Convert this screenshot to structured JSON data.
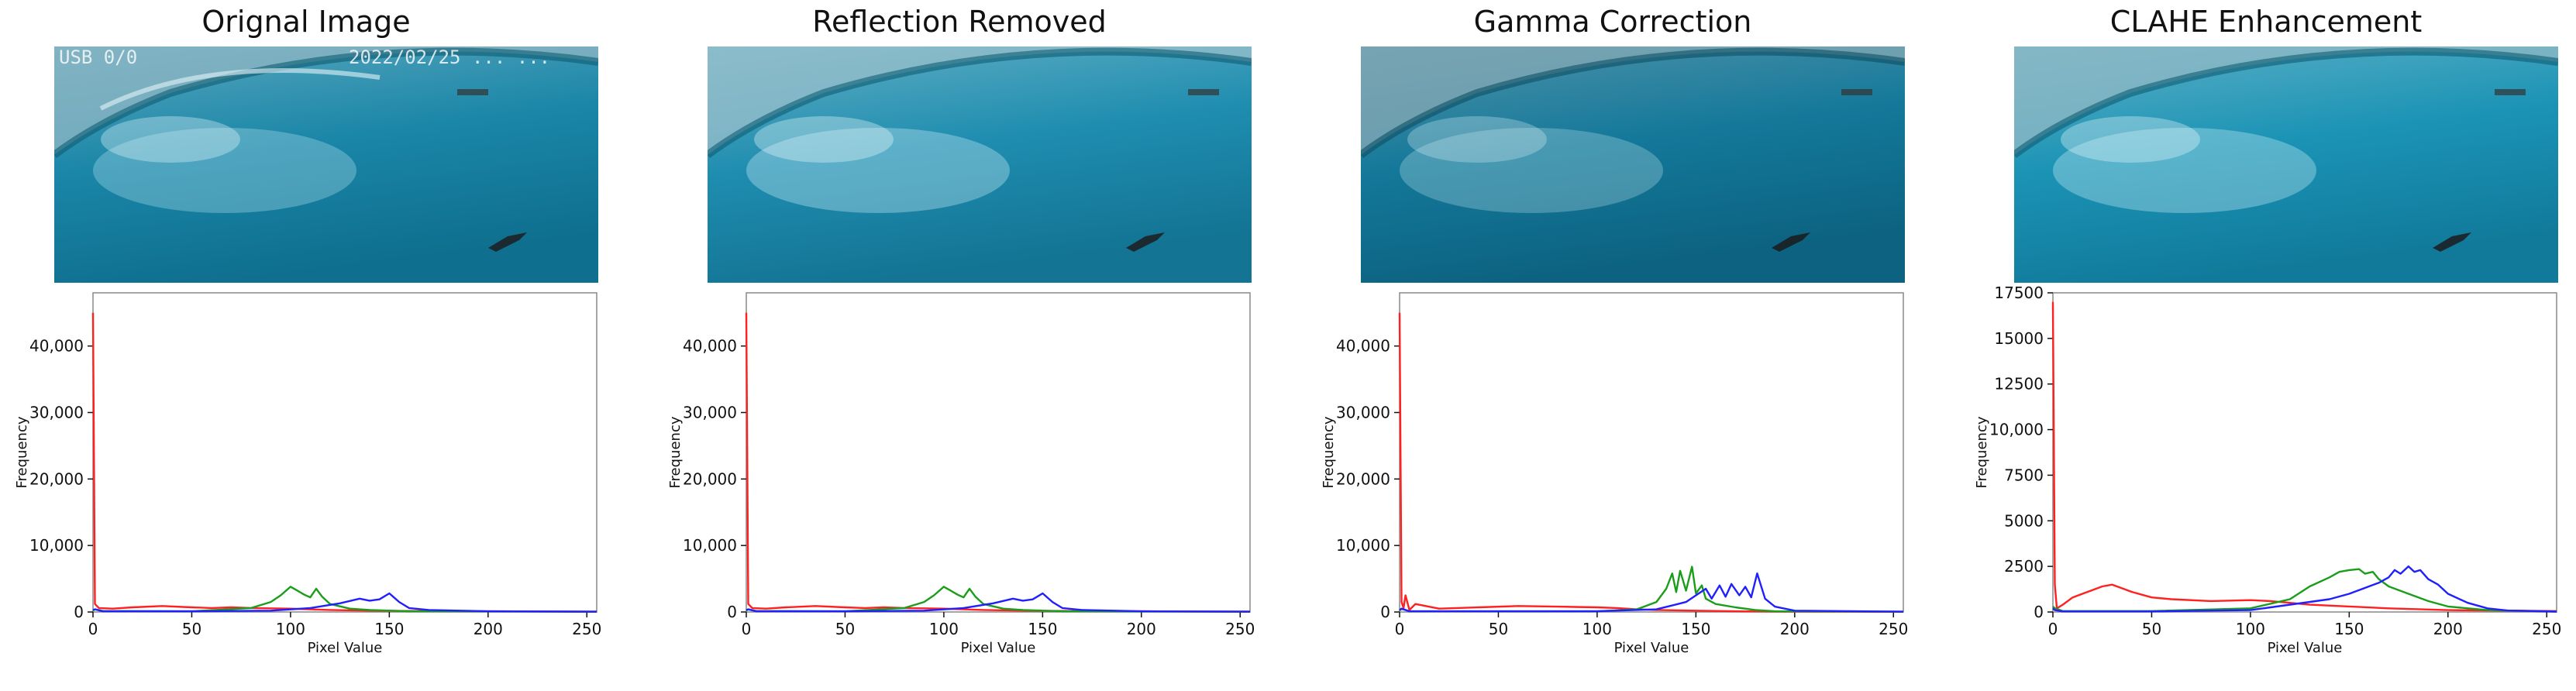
{
  "figure": {
    "overlay_left": "USB 0/0",
    "overlay_timestamp": "2022/02/25 ... ..."
  },
  "colors": {
    "red": "#ff2020",
    "green": "#1a9e1a",
    "blue": "#2020ff",
    "axis": "#111111",
    "frame": "#888888"
  },
  "chart_data": [
    {
      "type": "line",
      "title": "Orignal Image",
      "xlabel": "Pixel Value",
      "ylabel": "Frequency",
      "xlim": [
        0,
        255
      ],
      "ylim": [
        0,
        48000
      ],
      "xticks": [
        0,
        50,
        100,
        150,
        200,
        250
      ],
      "xtick_labels": [
        "0",
        "50",
        "100",
        "150",
        "200",
        "250"
      ],
      "yticks": [
        0,
        10000,
        20000,
        30000,
        40000
      ],
      "ytick_labels": [
        "0",
        "10,000",
        "20,000",
        "30,000",
        "40,000"
      ],
      "series": [
        {
          "name": "red",
          "color": "#ff2020",
          "x": [
            0,
            1,
            3,
            10,
            20,
            35,
            50,
            60,
            70,
            80,
            100,
            120,
            140,
            160,
            200,
            255
          ],
          "y": [
            45000,
            1200,
            600,
            500,
            700,
            900,
            700,
            600,
            700,
            600,
            500,
            300,
            200,
            150,
            100,
            50
          ]
        },
        {
          "name": "green",
          "color": "#1a9e1a",
          "x": [
            0,
            1,
            5,
            50,
            80,
            90,
            95,
            100,
            103,
            107,
            110,
            113,
            116,
            120,
            130,
            140,
            160,
            255
          ],
          "y": [
            200,
            400,
            150,
            100,
            600,
            1500,
            2500,
            3800,
            3300,
            2600,
            2200,
            3500,
            2300,
            1200,
            500,
            300,
            100,
            50
          ]
        },
        {
          "name": "blue",
          "color": "#2020ff",
          "x": [
            0,
            1,
            5,
            50,
            90,
            110,
            125,
            135,
            140,
            145,
            150,
            155,
            160,
            170,
            200,
            255
          ],
          "y": [
            300,
            400,
            100,
            100,
            200,
            600,
            1300,
            2000,
            1700,
            1900,
            2800,
            1500,
            600,
            300,
            100,
            50
          ]
        }
      ]
    },
    {
      "type": "line",
      "title": "Reflection Removed",
      "xlabel": "Pixel Value",
      "ylabel": "Frequency",
      "xlim": [
        0,
        255
      ],
      "ylim": [
        0,
        48000
      ],
      "xticks": [
        0,
        50,
        100,
        150,
        200,
        250
      ],
      "xtick_labels": [
        "0",
        "50",
        "100",
        "150",
        "200",
        "250"
      ],
      "yticks": [
        0,
        10000,
        20000,
        30000,
        40000
      ],
      "ytick_labels": [
        "0",
        "10,000",
        "20,000",
        "30,000",
        "40,000"
      ],
      "series": [
        {
          "name": "red",
          "color": "#ff2020",
          "x": [
            0,
            1,
            3,
            10,
            20,
            35,
            50,
            60,
            70,
            80,
            100,
            120,
            140,
            160,
            200,
            255
          ],
          "y": [
            45000,
            1200,
            600,
            500,
            700,
            900,
            700,
            600,
            700,
            600,
            500,
            300,
            200,
            150,
            100,
            50
          ]
        },
        {
          "name": "green",
          "color": "#1a9e1a",
          "x": [
            0,
            1,
            5,
            50,
            80,
            90,
            95,
            100,
            103,
            107,
            110,
            113,
            116,
            120,
            130,
            140,
            160,
            255
          ],
          "y": [
            200,
            400,
            150,
            100,
            600,
            1500,
            2500,
            3800,
            3300,
            2600,
            2200,
            3500,
            2300,
            1200,
            500,
            300,
            100,
            50
          ]
        },
        {
          "name": "blue",
          "color": "#2020ff",
          "x": [
            0,
            1,
            5,
            50,
            90,
            110,
            125,
            135,
            140,
            145,
            150,
            155,
            160,
            170,
            200,
            255
          ],
          "y": [
            300,
            400,
            100,
            100,
            200,
            600,
            1300,
            2000,
            1700,
            1900,
            2800,
            1500,
            600,
            300,
            100,
            50
          ]
        }
      ]
    },
    {
      "type": "line",
      "title": "Gamma Correction",
      "xlabel": "Pixel Value",
      "ylabel": "Frequency",
      "xlim": [
        0,
        255
      ],
      "ylim": [
        0,
        48000
      ],
      "xticks": [
        0,
        50,
        100,
        150,
        200,
        250
      ],
      "xtick_labels": [
        "0",
        "50",
        "100",
        "150",
        "200",
        "250"
      ],
      "yticks": [
        0,
        10000,
        20000,
        30000,
        40000
      ],
      "ytick_labels": [
        "0",
        "10,000",
        "20,000",
        "30,000",
        "40,000"
      ],
      "series": [
        {
          "name": "red",
          "color": "#ff2020",
          "x": [
            0,
            1,
            2,
            3,
            5,
            8,
            20,
            40,
            60,
            80,
            100,
            110,
            120,
            130,
            150,
            170,
            200,
            255
          ],
          "y": [
            45000,
            1500,
            600,
            2500,
            300,
            1200,
            500,
            700,
            900,
            800,
            700,
            600,
            400,
            300,
            200,
            100,
            50,
            30
          ]
        },
        {
          "name": "green",
          "color": "#1a9e1a",
          "x": [
            0,
            1,
            5,
            100,
            120,
            130,
            135,
            138,
            140,
            142,
            145,
            148,
            150,
            153,
            155,
            160,
            170,
            180,
            190,
            255
          ],
          "y": [
            200,
            500,
            100,
            100,
            400,
            1500,
            3500,
            5800,
            3000,
            6200,
            3200,
            6800,
            2800,
            4000,
            2000,
            1200,
            700,
            300,
            100,
            50
          ]
        },
        {
          "name": "blue",
          "color": "#2020ff",
          "x": [
            0,
            1,
            5,
            100,
            130,
            145,
            150,
            155,
            158,
            162,
            165,
            168,
            172,
            175,
            178,
            181,
            185,
            190,
            200,
            255
          ],
          "y": [
            300,
            500,
            100,
            100,
            400,
            1500,
            2500,
            3500,
            2000,
            4000,
            2300,
            4200,
            2500,
            3800,
            2200,
            5800,
            2000,
            800,
            200,
            50
          ]
        }
      ]
    },
    {
      "type": "line",
      "title": "CLAHE Enhancement",
      "xlabel": "Pixel Value",
      "ylabel": "Frequency",
      "xlim": [
        0,
        255
      ],
      "ylim": [
        0,
        17500
      ],
      "xticks": [
        0,
        50,
        100,
        150,
        200,
        250
      ],
      "xtick_labels": [
        "0",
        "50",
        "100",
        "150",
        "200",
        "250"
      ],
      "yticks": [
        0,
        2500,
        5000,
        7500,
        10000,
        12500,
        15000,
        17500
      ],
      "ytick_labels": [
        "0",
        "2500",
        "5000",
        "7500",
        "10,000",
        "12500",
        "15000",
        "17500"
      ],
      "series": [
        {
          "name": "red",
          "color": "#ff2020",
          "x": [
            0,
            1,
            2,
            5,
            10,
            15,
            20,
            25,
            30,
            35,
            40,
            50,
            60,
            80,
            100,
            110,
            120,
            130,
            150,
            170,
            200,
            255
          ],
          "y": [
            17000,
            1500,
            200,
            400,
            800,
            1000,
            1200,
            1400,
            1500,
            1300,
            1100,
            800,
            700,
            600,
            650,
            600,
            500,
            400,
            300,
            200,
            100,
            50
          ]
        },
        {
          "name": "green",
          "color": "#1a9e1a",
          "x": [
            0,
            1,
            5,
            50,
            100,
            120,
            130,
            140,
            145,
            150,
            155,
            158,
            162,
            165,
            170,
            180,
            190,
            200,
            220,
            255
          ],
          "y": [
            300,
            200,
            50,
            50,
            200,
            700,
            1400,
            1900,
            2200,
            2300,
            2350,
            2100,
            2200,
            1800,
            1400,
            1000,
            600,
            300,
            100,
            20
          ]
        },
        {
          "name": "blue",
          "color": "#2020ff",
          "x": [
            0,
            1,
            5,
            50,
            100,
            140,
            150,
            160,
            165,
            170,
            173,
            176,
            180,
            183,
            186,
            190,
            195,
            200,
            210,
            220,
            230,
            255
          ],
          "y": [
            200,
            100,
            30,
            30,
            100,
            700,
            1000,
            1400,
            1600,
            1900,
            2300,
            2100,
            2500,
            2200,
            2300,
            1800,
            1500,
            1000,
            500,
            200,
            80,
            20
          ]
        }
      ]
    }
  ]
}
